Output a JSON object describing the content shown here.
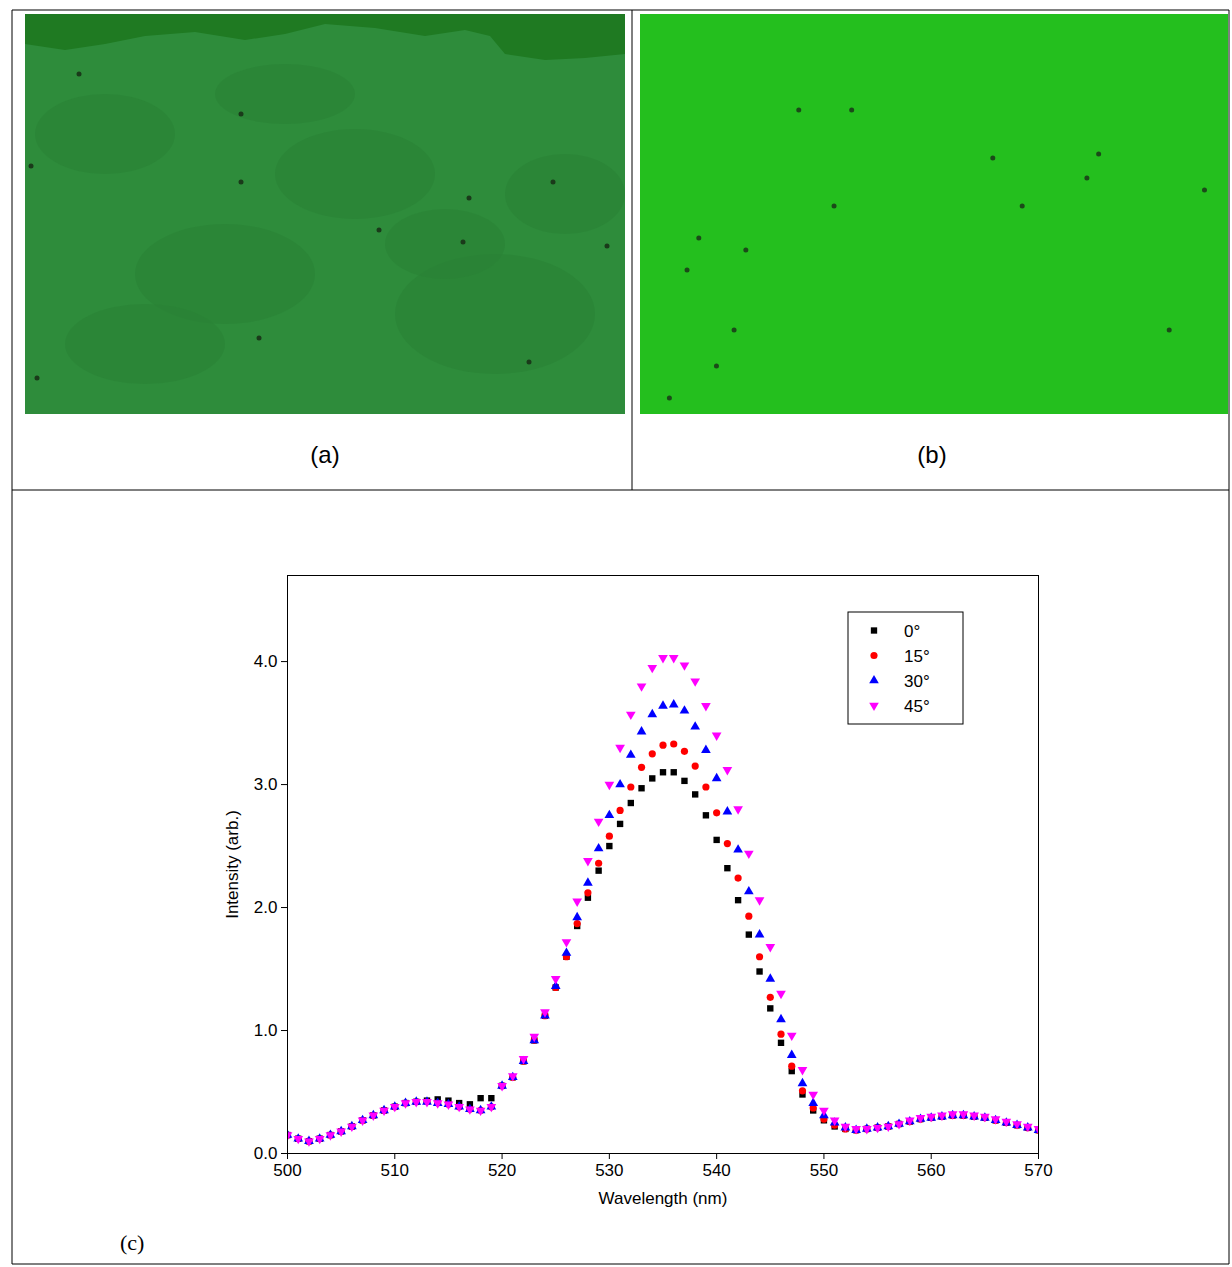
{
  "panel_labels": [
    "(a)",
    "(b)",
    "(c)"
  ],
  "chart_data": {
    "type": "scatter",
    "x_label": "Wavelength (nm)",
    "y_label": "Intensity (arb.)",
    "xlim": [
      500,
      570
    ],
    "xticks": [
      500,
      510,
      520,
      530,
      540,
      550,
      560,
      570
    ],
    "ylim": [
      0,
      4.7
    ],
    "yticks": [
      0,
      1,
      2,
      3,
      4
    ],
    "grid": false,
    "legend": "top-right",
    "x": [
      500,
      501,
      502,
      503,
      504,
      505,
      506,
      507,
      508,
      509,
      510,
      511,
      512,
      513,
      514,
      515,
      516,
      517,
      518,
      519,
      520,
      521,
      522,
      523,
      524,
      525,
      526,
      527,
      528,
      529,
      530,
      531,
      532,
      533,
      534,
      535,
      536,
      537,
      538,
      539,
      540,
      541,
      542,
      543,
      544,
      545,
      546,
      547,
      548,
      549,
      550,
      551,
      552,
      553,
      554,
      555,
      556,
      557,
      558,
      559,
      560,
      561,
      562,
      563,
      564,
      565,
      566,
      567,
      568,
      569,
      570
    ],
    "series": [
      {
        "name": "0°",
        "color": "#000000",
        "marker": "square",
        "values": [
          0.15,
          0.12,
          0.1,
          0.12,
          0.15,
          0.18,
          0.22,
          0.27,
          0.31,
          0.35,
          0.38,
          0.41,
          0.42,
          0.43,
          0.44,
          0.43,
          0.41,
          0.4,
          0.45,
          0.45,
          0.55,
          0.62,
          0.75,
          0.92,
          1.12,
          1.35,
          1.6,
          1.85,
          2.08,
          2.3,
          2.5,
          2.68,
          2.85,
          2.97,
          3.05,
          3.1,
          3.1,
          3.03,
          2.92,
          2.75,
          2.55,
          2.32,
          2.06,
          1.78,
          1.48,
          1.18,
          0.9,
          0.67,
          0.48,
          0.35,
          0.27,
          0.22,
          0.2,
          0.19,
          0.2,
          0.21,
          0.22,
          0.24,
          0.26,
          0.28,
          0.29,
          0.3,
          0.31,
          0.31,
          0.3,
          0.29,
          0.27,
          0.25,
          0.23,
          0.21,
          0.19
        ]
      },
      {
        "name": "15°",
        "color": "#ff0000",
        "marker": "circle",
        "values": [
          0.15,
          0.12,
          0.1,
          0.12,
          0.15,
          0.18,
          0.22,
          0.27,
          0.31,
          0.35,
          0.38,
          0.41,
          0.42,
          0.42,
          0.41,
          0.4,
          0.38,
          0.36,
          0.35,
          0.38,
          0.55,
          0.62,
          0.75,
          0.92,
          1.12,
          1.35,
          1.6,
          1.87,
          2.12,
          2.36,
          2.58,
          2.79,
          2.98,
          3.14,
          3.25,
          3.32,
          3.33,
          3.27,
          3.15,
          2.98,
          2.77,
          2.52,
          2.24,
          1.93,
          1.6,
          1.27,
          0.97,
          0.71,
          0.51,
          0.37,
          0.28,
          0.23,
          0.2,
          0.19,
          0.2,
          0.21,
          0.22,
          0.24,
          0.26,
          0.28,
          0.29,
          0.3,
          0.31,
          0.31,
          0.3,
          0.29,
          0.27,
          0.25,
          0.23,
          0.21,
          0.19
        ]
      },
      {
        "name": "30°",
        "color": "#0000ff",
        "marker": "triangle-up",
        "values": [
          0.15,
          0.12,
          0.1,
          0.12,
          0.15,
          0.18,
          0.22,
          0.27,
          0.31,
          0.35,
          0.38,
          0.41,
          0.42,
          0.42,
          0.41,
          0.4,
          0.38,
          0.36,
          0.35,
          0.38,
          0.55,
          0.62,
          0.75,
          0.92,
          1.12,
          1.36,
          1.63,
          1.92,
          2.2,
          2.48,
          2.75,
          3.0,
          3.24,
          3.43,
          3.57,
          3.64,
          3.65,
          3.6,
          3.47,
          3.28,
          3.05,
          2.78,
          2.47,
          2.13,
          1.78,
          1.42,
          1.09,
          0.8,
          0.57,
          0.41,
          0.31,
          0.25,
          0.21,
          0.19,
          0.2,
          0.21,
          0.22,
          0.24,
          0.26,
          0.28,
          0.29,
          0.3,
          0.31,
          0.31,
          0.3,
          0.29,
          0.27,
          0.25,
          0.23,
          0.21,
          0.19
        ]
      },
      {
        "name": "45°",
        "color": "#ff00ff",
        "marker": "triangle-down",
        "values": [
          0.15,
          0.12,
          0.1,
          0.12,
          0.15,
          0.18,
          0.22,
          0.27,
          0.31,
          0.35,
          0.38,
          0.41,
          0.42,
          0.42,
          0.41,
          0.4,
          0.38,
          0.36,
          0.35,
          0.38,
          0.55,
          0.63,
          0.77,
          0.95,
          1.15,
          1.42,
          1.72,
          2.05,
          2.38,
          2.7,
          3.0,
          3.3,
          3.57,
          3.8,
          3.95,
          4.03,
          4.03,
          3.97,
          3.84,
          3.64,
          3.4,
          3.12,
          2.8,
          2.44,
          2.06,
          1.68,
          1.3,
          0.96,
          0.68,
          0.48,
          0.35,
          0.27,
          0.22,
          0.2,
          0.2,
          0.21,
          0.22,
          0.24,
          0.27,
          0.29,
          0.3,
          0.31,
          0.32,
          0.32,
          0.31,
          0.3,
          0.28,
          0.26,
          0.24,
          0.22,
          0.2
        ]
      }
    ]
  }
}
